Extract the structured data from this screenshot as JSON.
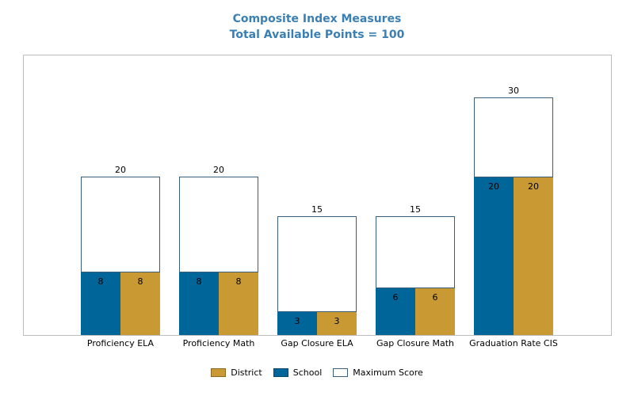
{
  "chart_data": {
    "type": "bar",
    "title": "Composite Index Measures",
    "subtitle": "Total Available Points = 100",
    "categories": [
      "Proficiency ELA",
      "Proficiency Math",
      "Gap Closure ELA",
      "Gap Closure Math",
      "Graduation Rate CIS"
    ],
    "series": [
      {
        "name": "Maximum Score",
        "values": [
          20,
          20,
          15,
          15,
          30
        ],
        "color": "#ffffff",
        "stroke": "#3a5f7d"
      },
      {
        "name": "School",
        "values": [
          8,
          8,
          3,
          6,
          20
        ],
        "color": "#00669a"
      },
      {
        "name": "District",
        "values": [
          8,
          8,
          3,
          6,
          20
        ],
        "color": "#c99a34"
      }
    ],
    "ylim": [
      0,
      36
    ],
    "xlabel": "",
    "ylabel": "",
    "grid": false,
    "legend_position": "bottom",
    "legend": [
      "District",
      "School",
      "Maximum Score"
    ]
  }
}
